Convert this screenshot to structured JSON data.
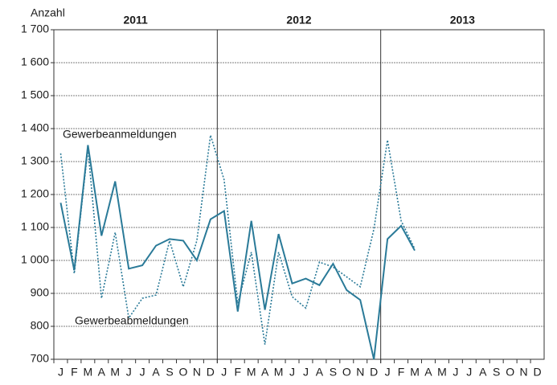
{
  "chart_data": {
    "type": "line",
    "y_label": "Anzahl",
    "year_groups": [
      "2011",
      "2012",
      "2013"
    ],
    "categories": [
      "J",
      "F",
      "M",
      "A",
      "M",
      "J",
      "J",
      "A",
      "S",
      "O",
      "N",
      "D",
      "J",
      "F",
      "M",
      "A",
      "M",
      "J",
      "J",
      "A",
      "S",
      "O",
      "N",
      "D",
      "J",
      "F",
      "M",
      "A",
      "M",
      "J",
      "J",
      "A",
      "S",
      "O",
      "N",
      "D"
    ],
    "series": [
      {
        "name": "Gewerbeanmeldungen",
        "color": "#2a7a98",
        "dash": false,
        "values": [
          1175,
          970,
          1350,
          1075,
          1240,
          975,
          985,
          1045,
          1065,
          1060,
          1000,
          1125,
          1150,
          845,
          1120,
          850,
          1080,
          930,
          945,
          925,
          990,
          910,
          880,
          700,
          1065,
          1105,
          1030,
          null,
          null,
          null,
          null,
          null,
          null,
          null,
          null,
          null
        ]
      },
      {
        "name": "Gewerbeabmeldungen",
        "color": "#2a7a98",
        "dash": true,
        "values": [
          1325,
          960,
          1340,
          885,
          1085,
          825,
          885,
          895,
          1060,
          920,
          1060,
          1380,
          1245,
          870,
          1025,
          745,
          1025,
          890,
          855,
          995,
          980,
          950,
          920,
          1095,
          1365,
          1120,
          1035,
          null,
          null,
          null,
          null,
          null,
          null,
          null,
          null,
          null
        ]
      }
    ],
    "ylim": [
      700,
      1700
    ],
    "yticks": [
      700,
      800,
      900,
      {
        "value": 1000,
        "label": "1 000"
      },
      {
        "value": 1100,
        "label": "1 100"
      },
      {
        "value": 1200,
        "label": "1 200"
      },
      {
        "value": 1300,
        "label": "1 300"
      },
      {
        "value": 1400,
        "label": "1 400"
      },
      {
        "value": 1500,
        "label": "1 500"
      },
      {
        "value": 1600,
        "label": "1 600"
      },
      {
        "value": 1700,
        "label": "1 700"
      }
    ],
    "grid": true
  }
}
